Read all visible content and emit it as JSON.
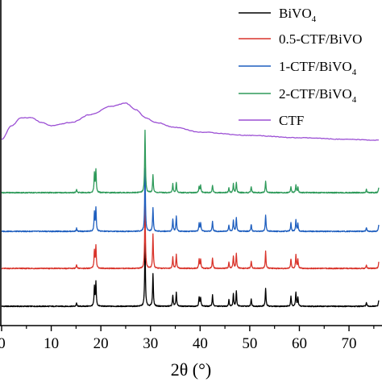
{
  "chart_data": {
    "type": "line",
    "xlabel": "2θ (°)",
    "ylabel": "",
    "xlim": [
      0,
      76
    ],
    "x_ticks": [
      0,
      10,
      20,
      30,
      40,
      50,
      60,
      70
    ],
    "x_tick_labels": [
      "0",
      "10",
      "20",
      "30",
      "40",
      "50",
      "60",
      "70"
    ],
    "grid": false,
    "legend_position": "top-right",
    "series": [
      {
        "name": "BiVO4",
        "label_main": "BiVO",
        "label_sub": "4",
        "color": "#000000",
        "peaks": [
          [
            15.1,
            5
          ],
          [
            18.7,
            30
          ],
          [
            19.0,
            38
          ],
          [
            28.9,
            100
          ],
          [
            30.5,
            52
          ],
          [
            34.5,
            18
          ],
          [
            35.2,
            22
          ],
          [
            39.8,
            14
          ],
          [
            40.1,
            14
          ],
          [
            42.5,
            18
          ],
          [
            45.8,
            10
          ],
          [
            46.7,
            20
          ],
          [
            47.3,
            24
          ],
          [
            50.3,
            12
          ],
          [
            53.2,
            28
          ],
          [
            58.3,
            16
          ],
          [
            59.3,
            22
          ],
          [
            59.7,
            14
          ],
          [
            73.5,
            6
          ],
          [
            76.0,
            10
          ]
        ]
      },
      {
        "name": "0.5-CTF/BiVO4",
        "label_main": "0.5-CTF/BiVO",
        "label_sub": "",
        "color": "#d9342b",
        "peaks": [
          [
            15.1,
            5
          ],
          [
            18.7,
            28
          ],
          [
            19.0,
            36
          ],
          [
            28.9,
            100
          ],
          [
            30.5,
            54
          ],
          [
            34.5,
            18
          ],
          [
            35.2,
            22
          ],
          [
            39.8,
            14
          ],
          [
            40.1,
            14
          ],
          [
            42.5,
            17
          ],
          [
            45.8,
            10
          ],
          [
            46.7,
            20
          ],
          [
            47.3,
            24
          ],
          [
            50.3,
            12
          ],
          [
            53.2,
            27
          ],
          [
            58.3,
            15
          ],
          [
            59.3,
            21
          ],
          [
            59.7,
            14
          ],
          [
            73.5,
            6
          ],
          [
            76.0,
            10
          ]
        ]
      },
      {
        "name": "1-CTF/BiVO4",
        "label_main": "1-CTF/BiVO",
        "label_sub": "4",
        "color": "#1f5fbf",
        "peaks": [
          [
            15.1,
            5
          ],
          [
            18.7,
            30
          ],
          [
            19.0,
            36
          ],
          [
            28.9,
            100
          ],
          [
            30.5,
            38
          ],
          [
            34.5,
            20
          ],
          [
            35.2,
            24
          ],
          [
            39.8,
            12
          ],
          [
            40.1,
            13
          ],
          [
            42.5,
            16
          ],
          [
            45.8,
            10
          ],
          [
            46.7,
            18
          ],
          [
            47.3,
            22
          ],
          [
            50.3,
            11
          ],
          [
            53.2,
            26
          ],
          [
            58.3,
            14
          ],
          [
            59.3,
            18
          ],
          [
            59.7,
            12
          ],
          [
            73.5,
            6
          ],
          [
            76.0,
            10
          ]
        ]
      },
      {
        "name": "2-CTF/BiVO4",
        "label_main": "2-CTF/BiVO",
        "label_sub": "4",
        "color": "#2e9a5a",
        "peaks": [
          [
            15.1,
            5
          ],
          [
            18.7,
            30
          ],
          [
            19.0,
            36
          ],
          [
            28.9,
            100
          ],
          [
            30.5,
            28
          ],
          [
            34.5,
            14
          ],
          [
            35.2,
            16
          ],
          [
            39.8,
            10
          ],
          [
            40.1,
            11
          ],
          [
            42.5,
            12
          ],
          [
            45.8,
            8
          ],
          [
            46.7,
            14
          ],
          [
            47.3,
            16
          ],
          [
            50.3,
            9
          ],
          [
            53.2,
            18
          ],
          [
            58.3,
            10
          ],
          [
            59.3,
            12
          ],
          [
            59.7,
            9
          ],
          [
            73.5,
            5
          ],
          [
            76.0,
            8
          ]
        ]
      },
      {
        "name": "CTF",
        "label_main": "CTF",
        "label_sub": "",
        "color": "#9b4fd4",
        "profile": [
          [
            0,
            3
          ],
          [
            2,
            20
          ],
          [
            4,
            30
          ],
          [
            6,
            30
          ],
          [
            8,
            24
          ],
          [
            10,
            20
          ],
          [
            14,
            24
          ],
          [
            18,
            34
          ],
          [
            22,
            44
          ],
          [
            25,
            48
          ],
          [
            27,
            40
          ],
          [
            29,
            30
          ],
          [
            31,
            24
          ],
          [
            35,
            18
          ],
          [
            40,
            12
          ],
          [
            50,
            8
          ],
          [
            60,
            5
          ],
          [
            70,
            3
          ],
          [
            76,
            2
          ]
        ]
      }
    ]
  }
}
